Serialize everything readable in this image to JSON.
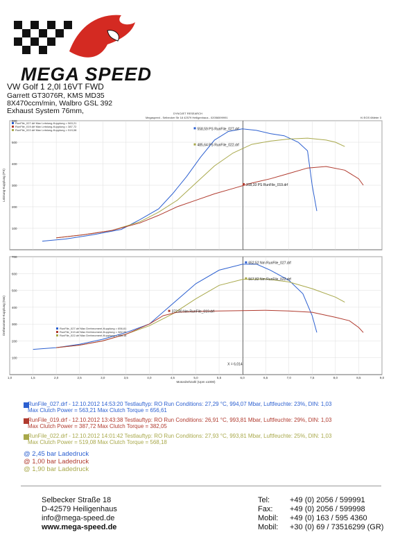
{
  "header": {
    "brand": "MEGA SPEED",
    "car_title": "VW Golf 1  2,0l 16VT FWD",
    "car_lines": [
      "Garrett GT3076R, KMS MD35",
      "8X470ccm/min, Walbro GSL 392",
      "Exhaust System 76mm,"
    ]
  },
  "sheet": {
    "company": "DYNOJET RESEARCH",
    "address": "Megaspeed - Selbecker Str 18 42579 Heiligenhaus - 02056599991",
    "page_ref": "Ki EGS 6Meter 3"
  },
  "colors": {
    "run027": "#2b5fd0",
    "run019": "#b03a2e",
    "run022": "#a8a84a"
  },
  "chart_data": [
    {
      "type": "line",
      "ylabel": "Leistung-Kupplung (PS)",
      "ylim": [
        0,
        600
      ],
      "yticks": [
        "600",
        "500",
        "400",
        "300",
        "200",
        "100"
      ],
      "xlim": [
        1.0,
        9.0
      ],
      "legend": [
        "RunFile_027.drf Max Leistung-Kupplung = 563,21",
        "RunFile_019.drf Max Leistung-Kupplung = 387,72",
        "RunFile_022.drf Max Leistung-Kupplung = 519,08"
      ],
      "annotations": [
        "558,59 PS RunFile_027.drf",
        "485,64 PS RunFile_022.drf",
        "318,33 PS RunFile_019.drf"
      ],
      "series": [
        {
          "name": "RunFile_027.drf",
          "color": "run027",
          "x": [
            1.7,
            2.2,
            2.8,
            3.4,
            3.8,
            4.2,
            4.5,
            4.8,
            5.1,
            5.4,
            5.7,
            6.0,
            6.3,
            6.6,
            6.9,
            7.2,
            7.4,
            7.5,
            7.6
          ],
          "y": [
            40,
            50,
            70,
            95,
            140,
            190,
            260,
            340,
            430,
            510,
            550,
            562,
            555,
            540,
            530,
            500,
            460,
            300,
            180
          ]
        },
        {
          "name": "RunFile_022.drf",
          "color": "run022",
          "x": [
            2.0,
            2.6,
            3.2,
            3.8,
            4.2,
            4.6,
            5.0,
            5.4,
            5.8,
            6.2,
            6.6,
            7.0,
            7.4,
            7.8,
            8.0,
            8.2
          ],
          "y": [
            55,
            70,
            90,
            130,
            175,
            230,
            310,
            390,
            450,
            490,
            505,
            515,
            519,
            510,
            500,
            480
          ]
        },
        {
          "name": "RunFile_019.drf",
          "color": "run019",
          "x": [
            2.0,
            2.6,
            3.2,
            3.8,
            4.2,
            4.6,
            5.0,
            5.4,
            5.8,
            6.2,
            6.6,
            7.0,
            7.4,
            7.8,
            8.2,
            8.5,
            8.6
          ],
          "y": [
            55,
            70,
            90,
            125,
            160,
            200,
            230,
            260,
            285,
            310,
            330,
            355,
            380,
            387,
            370,
            330,
            300
          ]
        }
      ]
    },
    {
      "type": "line",
      "ylabel": "Drehmoment-Kupplung (Nm)",
      "xlabel": "Motordrehzahl (Upm x1000)",
      "ylim": [
        0,
        700
      ],
      "yticks": [
        "700",
        "600",
        "500",
        "400",
        "300",
        "200",
        "100"
      ],
      "xlim": [
        1.0,
        9.0
      ],
      "xticks": [
        "1,0",
        "1,5",
        "2,0",
        "2,5",
        "3,0",
        "3,5",
        "4,0",
        "4,5",
        "5,0",
        "5,5",
        "6,0",
        "6,5",
        "7,0",
        "7,5",
        "8,0",
        "8,5",
        "9,0"
      ],
      "legend": [
        "RunFile_027.drf Max Drehmoment-Kupplung = 656,61",
        "RunFile_019.drf Max Drehmoment-Kupplung = 382,05",
        "RunFile_022.drf Max Drehmoment-Kupplung = 568,18"
      ],
      "annotations": [
        "652,52 Nm RunFile_027.drf",
        "567,82 Nm RunFile_022.drf",
        "372,80 Nm RunFile_019.drf",
        "X = 6,014"
      ],
      "series": [
        {
          "name": "RunFile_027.drf",
          "color": "run027",
          "x": [
            1.5,
            2.0,
            2.5,
            3.0,
            3.5,
            4.0,
            4.5,
            5.0,
            5.5,
            6.0,
            6.3,
            6.6,
            7.0,
            7.3,
            7.5,
            7.6
          ],
          "y": [
            150,
            160,
            180,
            210,
            250,
            300,
            420,
            540,
            620,
            655,
            656,
            620,
            560,
            480,
            350,
            250
          ]
        },
        {
          "name": "RunFile_022.drf",
          "color": "run022",
          "x": [
            2.0,
            2.5,
            3.0,
            3.5,
            4.0,
            4.5,
            5.0,
            5.5,
            6.0,
            6.5,
            7.0,
            7.5,
            8.0,
            8.2
          ],
          "y": [
            160,
            175,
            200,
            240,
            290,
            360,
            450,
            530,
            565,
            568,
            550,
            510,
            460,
            430
          ]
        },
        {
          "name": "RunFile_019.drf",
          "color": "run019",
          "x": [
            2.0,
            2.5,
            3.0,
            3.5,
            4.0,
            4.3,
            4.6,
            5.0,
            5.5,
            6.0,
            6.5,
            7.0,
            7.5,
            8.0,
            8.3,
            8.5,
            8.6
          ],
          "y": [
            160,
            175,
            200,
            240,
            300,
            350,
            370,
            375,
            378,
            380,
            382,
            378,
            370,
            340,
            320,
            280,
            250
          ]
        }
      ]
    }
  ],
  "runs": [
    {
      "color": "run027",
      "line1": "RunFile_027.drf - 12.10.2012 14:53:20  Testlauftyp: RO  Run Conditions: 27,29 °C, 994,07 Mbar,  Luftfeuchte: 23%, DIN: 1,03",
      "line2": "Max Clutch Power = 563,21   Max Clutch Torque = 656,61"
    },
    {
      "color": "run019",
      "line1": "RunFile_019.drf - 12.10.2012 13:43:38  Testlauftyp: RO  Run Conditions: 26,91 °C, 993,81 Mbar,  Luftfeuchte: 29%, DIN: 1,03",
      "line2": "Max Clutch Power = 387,72   Max Clutch Torque = 382,05"
    },
    {
      "color": "run022",
      "line1": "RunFile_022.drf - 12.10.2012 14:01:42  Testlauftyp: RO  Run Conditions: 27,93 °C, 993,81 Mbar,  Luftfeuchte: 25%, DIN: 1,03",
      "line2": "Max Clutch Power = 519,08   Max Clutch Torque = 568,18"
    }
  ],
  "boost": [
    {
      "color": "run027",
      "text": "@ 2,45 bar Ladedruck"
    },
    {
      "color": "run019",
      "text": "@ 1,00 bar Ladedruck"
    },
    {
      "color": "run022",
      "text": "@ 1,90 bar Ladedruck"
    }
  ],
  "footer": {
    "address": [
      "Selbecker Straße 18",
      "D-42579  Heiligenhaus",
      "info@mega-speed.de",
      "www.mega-speed.de"
    ],
    "contacts": [
      {
        "label": "Tel:",
        "value": "+49 (0) 2056 / 599991"
      },
      {
        "label": "Fax:",
        "value": "+49 (0) 2056 / 599998"
      },
      {
        "label": "Mobil:",
        "value": "+49 (0) 163 / 595 4360"
      },
      {
        "label": "Mobil:",
        "value": "+30 (0) 69 / 73516299 (GR)"
      }
    ]
  }
}
